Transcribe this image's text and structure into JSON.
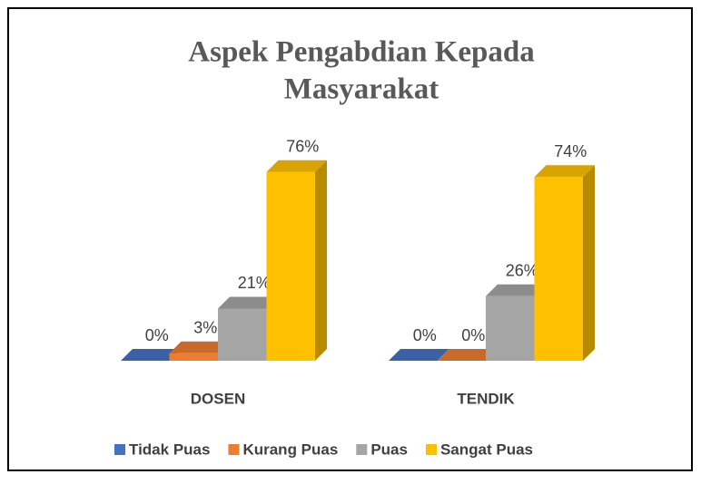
{
  "chart_data": {
    "type": "bar3d",
    "title": [
      "Aspek Pengabdian Kepada",
      "Masyarakat"
    ],
    "categories": [
      "DOSEN",
      "TENDIK"
    ],
    "series": [
      {
        "name": "Tidak Puas",
        "color": "#4472c4",
        "values": [
          0,
          0
        ],
        "value_labels": [
          "0%",
          "0%"
        ]
      },
      {
        "name": "Kurang Puas",
        "color": "#ed7d31",
        "values": [
          3,
          0
        ],
        "value_labels": [
          "3%",
          "0%"
        ]
      },
      {
        "name": "Puas",
        "color": "#a5a5a5",
        "values": [
          21,
          26
        ],
        "value_labels": [
          "21%",
          "26%"
        ]
      },
      {
        "name": "Sangat Puas",
        "color": "#ffc000",
        "values": [
          76,
          74
        ],
        "value_labels": [
          "76%",
          "74%"
        ]
      }
    ],
    "legend": "bottom"
  }
}
